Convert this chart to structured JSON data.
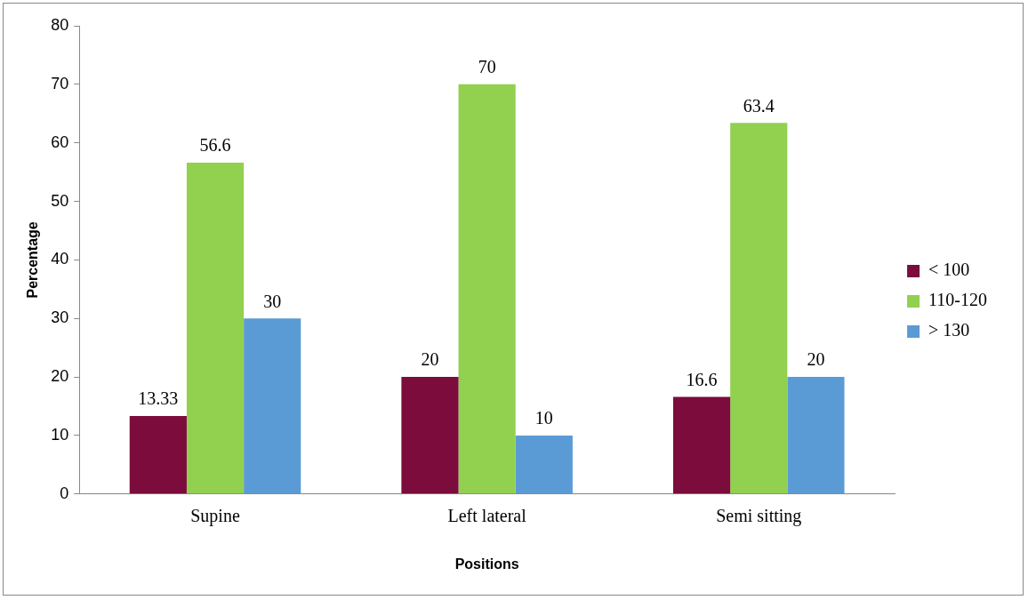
{
  "chart_data": {
    "type": "bar",
    "xlabel": "Positions",
    "ylabel": "Percentage",
    "categories": [
      "Supine",
      "Left lateral",
      "Semi sitting"
    ],
    "series": [
      {
        "name": "< 100",
        "color": "#7b0c3c",
        "values": [
          13.33,
          20,
          16.6
        ]
      },
      {
        "name": "110-120",
        "color": "#92d050",
        "values": [
          56.6,
          70,
          63.4
        ]
      },
      {
        "name": "> 130",
        "color": "#5b9bd5",
        "values": [
          30,
          10,
          20
        ]
      }
    ],
    "ylim": [
      0,
      80
    ],
    "yticks": [
      0,
      10,
      20,
      30,
      40,
      50,
      60,
      70,
      80
    ],
    "grid": false,
    "legend": "right",
    "data_labels": true
  }
}
